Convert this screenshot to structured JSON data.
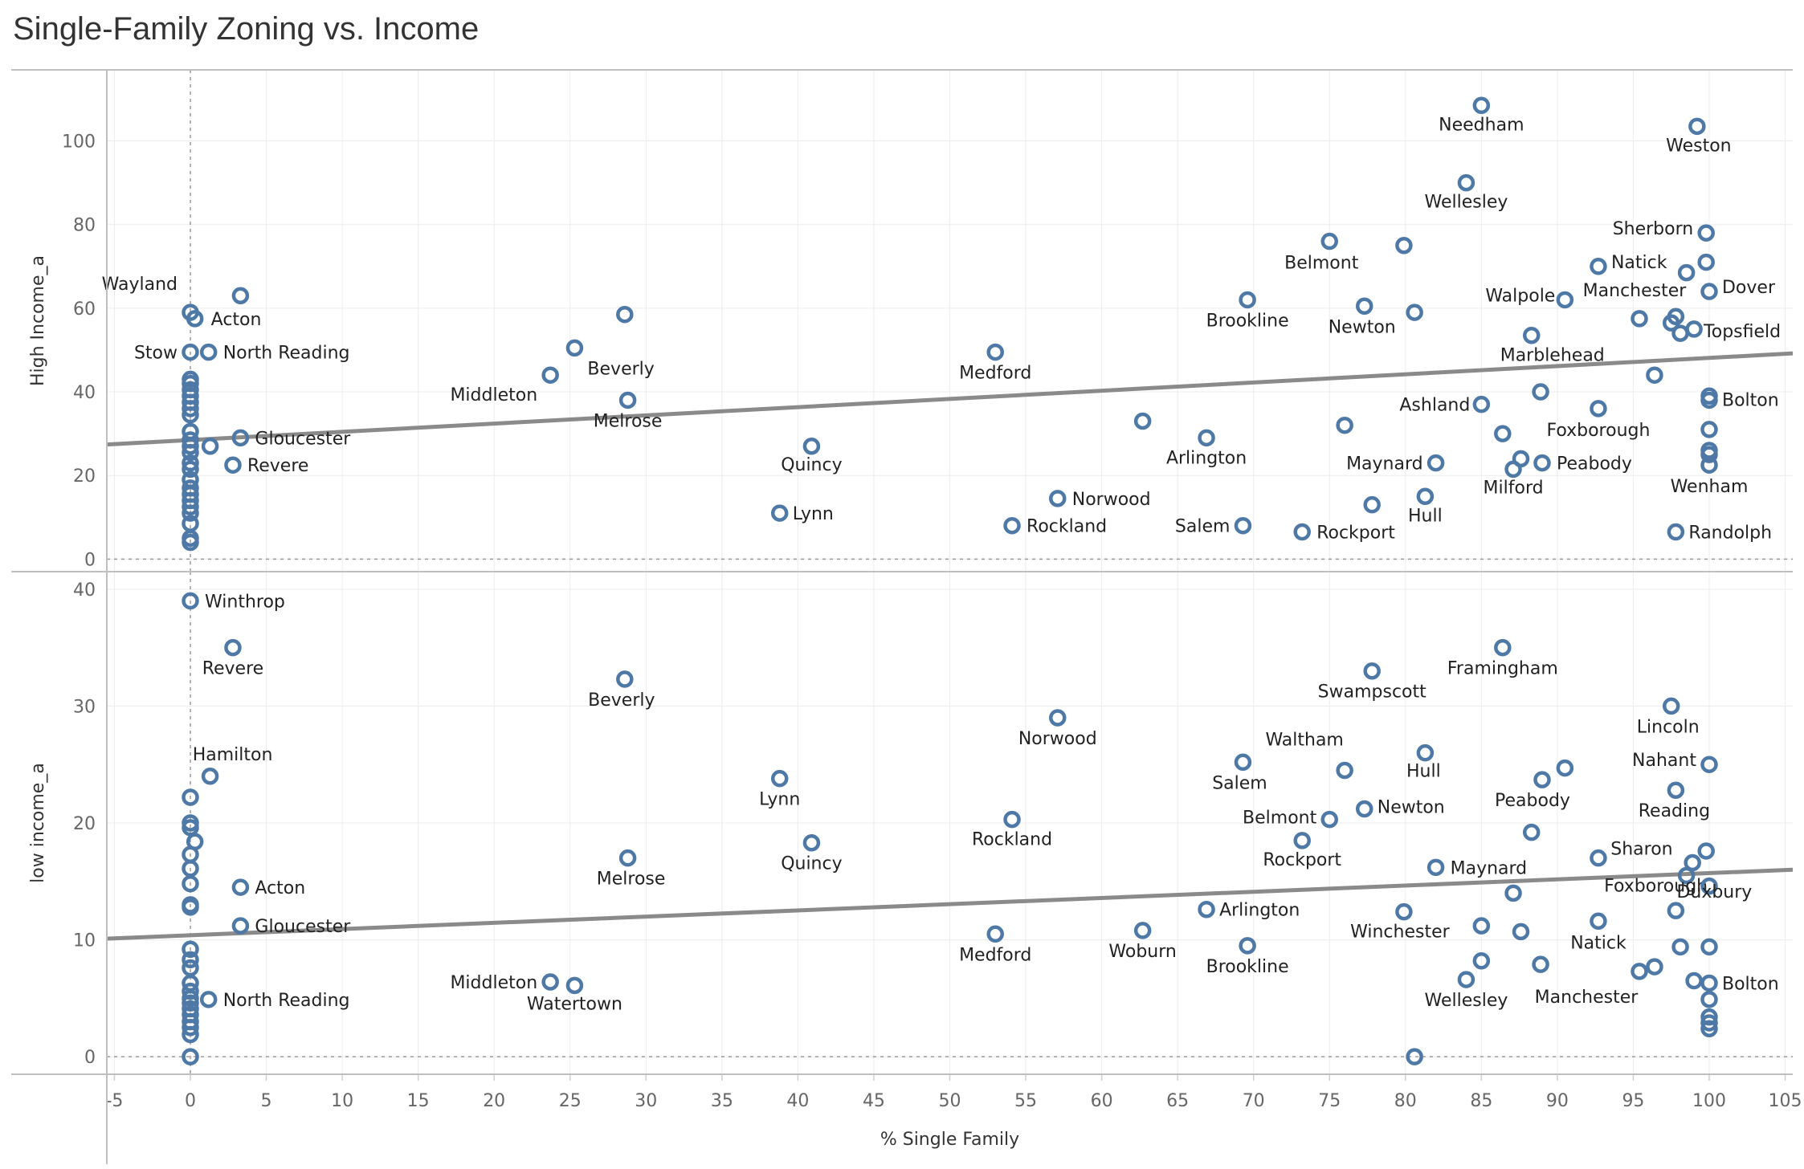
{
  "title": "Single-Family Zoning vs. Income",
  "chart_data": [
    {
      "id": "high",
      "type": "scatter",
      "ylabel": "High Income_a",
      "xlabel": "% Single Family",
      "xlim": [
        -5.5,
        105.5
      ],
      "ylim": [
        -3,
        117
      ],
      "yticks": [
        0,
        20,
        40,
        60,
        80,
        100
      ],
      "trend": [
        [
          -5.5,
          27.4
        ],
        [
          105.5,
          49.2
        ]
      ],
      "points": [
        {
          "x": 85.0,
          "y": 108.5,
          "label": "Needham"
        },
        {
          "x": 99.2,
          "y": 103.5,
          "label": "Weston"
        },
        {
          "x": 84.0,
          "y": 90.0,
          "label": "Wellesley"
        },
        {
          "x": 75.0,
          "y": 76.0,
          "label": "Belmont"
        },
        {
          "x": 79.9,
          "y": 75.0,
          "label": ""
        },
        {
          "x": 99.8,
          "y": 78.0,
          "label": "Sherborn"
        },
        {
          "x": 99.8,
          "y": 71.0,
          "label": ""
        },
        {
          "x": 92.7,
          "y": 70.0,
          "label": "Natick"
        },
        {
          "x": 98.5,
          "y": 68.5,
          "label": ""
        },
        {
          "x": 100.0,
          "y": 64.0,
          "label": "Dover"
        },
        {
          "x": 0.0,
          "y": 59.0,
          "label": "Wayland"
        },
        {
          "x": 3.3,
          "y": 63.0,
          "label": ""
        },
        {
          "x": 0.3,
          "y": 57.5,
          "label": "Acton"
        },
        {
          "x": 28.6,
          "y": 58.5,
          "label": ""
        },
        {
          "x": 25.3,
          "y": 50.5,
          "label": "Beverly"
        },
        {
          "x": 69.6,
          "y": 62.0,
          "label": "Brookline"
        },
        {
          "x": 77.3,
          "y": 60.5,
          "label": "Newton"
        },
        {
          "x": 80.6,
          "y": 59.0,
          "label": ""
        },
        {
          "x": 90.5,
          "y": 62.0,
          "label": "Walpole"
        },
        {
          "x": 95.4,
          "y": 57.5,
          "label": "Manchester"
        },
        {
          "x": 97.5,
          "y": 56.5,
          "label": ""
        },
        {
          "x": 97.8,
          "y": 58.0,
          "label": ""
        },
        {
          "x": 98.1,
          "y": 54.0,
          "label": ""
        },
        {
          "x": 99.0,
          "y": 55.0,
          "label": "Topsfield"
        },
        {
          "x": 88.3,
          "y": 53.5,
          "label": "Marblehead"
        },
        {
          "x": 0.0,
          "y": 49.5,
          "label": "Stow"
        },
        {
          "x": 1.2,
          "y": 49.5,
          "label": "North Reading"
        },
        {
          "x": 53.0,
          "y": 49.5,
          "label": "Medford"
        },
        {
          "x": 23.7,
          "y": 44.0,
          "label": "Middleton"
        },
        {
          "x": 28.8,
          "y": 38.0,
          "label": "Melrose"
        },
        {
          "x": 96.4,
          "y": 44.0,
          "label": ""
        },
        {
          "x": 88.9,
          "y": 40.0,
          "label": ""
        },
        {
          "x": 85.0,
          "y": 37.0,
          "label": "Ashland"
        },
        {
          "x": 92.7,
          "y": 36.0,
          "label": "Foxborough"
        },
        {
          "x": 100.0,
          "y": 39.0,
          "label": "Bolton"
        },
        {
          "x": 100.0,
          "y": 38.0,
          "label": ""
        },
        {
          "x": 62.7,
          "y": 33.0,
          "label": ""
        },
        {
          "x": 66.9,
          "y": 29.0,
          "label": "Arlington"
        },
        {
          "x": 76.0,
          "y": 32.0,
          "label": ""
        },
        {
          "x": 86.4,
          "y": 30.0,
          "label": ""
        },
        {
          "x": 100.0,
          "y": 31.0,
          "label": ""
        },
        {
          "x": 3.3,
          "y": 29.0,
          "label": "Gloucester"
        },
        {
          "x": 1.3,
          "y": 27.0,
          "label": ""
        },
        {
          "x": 2.8,
          "y": 22.5,
          "label": "Revere"
        },
        {
          "x": 40.9,
          "y": 27.0,
          "label": "Quincy"
        },
        {
          "x": 87.6,
          "y": 24.0,
          "label": ""
        },
        {
          "x": 87.1,
          "y": 21.5,
          "label": "Milford"
        },
        {
          "x": 89.0,
          "y": 23.0,
          "label": "Peabody"
        },
        {
          "x": 82.0,
          "y": 23.0,
          "label": "Maynard"
        },
        {
          "x": 100.0,
          "y": 26.0,
          "label": ""
        },
        {
          "x": 100.0,
          "y": 25.0,
          "label": ""
        },
        {
          "x": 100.0,
          "y": 22.5,
          "label": "Wenham"
        },
        {
          "x": 38.8,
          "y": 11.0,
          "label": "Lynn"
        },
        {
          "x": 57.1,
          "y": 14.5,
          "label": "Norwood"
        },
        {
          "x": 54.1,
          "y": 8.0,
          "label": "Rockland"
        },
        {
          "x": 69.3,
          "y": 8.0,
          "label": "Salem"
        },
        {
          "x": 73.2,
          "y": 6.5,
          "label": "Rockport"
        },
        {
          "x": 77.8,
          "y": 13.0,
          "label": ""
        },
        {
          "x": 81.3,
          "y": 15.0,
          "label": "Hull"
        },
        {
          "x": 97.8,
          "y": 6.5,
          "label": "Randolph"
        },
        {
          "x": 0.0,
          "y": 43.0,
          "label": ""
        },
        {
          "x": 0.0,
          "y": 42.0,
          "label": ""
        },
        {
          "x": 0.0,
          "y": 40.5,
          "label": ""
        },
        {
          "x": 0.0,
          "y": 39.0,
          "label": ""
        },
        {
          "x": 0.0,
          "y": 37.5,
          "label": ""
        },
        {
          "x": 0.0,
          "y": 36.0,
          "label": ""
        },
        {
          "x": 0.0,
          "y": 34.5,
          "label": ""
        },
        {
          "x": 0.0,
          "y": 30.5,
          "label": ""
        },
        {
          "x": 0.0,
          "y": 28.5,
          "label": ""
        },
        {
          "x": 0.0,
          "y": 27.0,
          "label": ""
        },
        {
          "x": 0.0,
          "y": 25.5,
          "label": ""
        },
        {
          "x": 0.0,
          "y": 23.0,
          "label": ""
        },
        {
          "x": 0.0,
          "y": 21.5,
          "label": ""
        },
        {
          "x": 0.0,
          "y": 19.0,
          "label": ""
        },
        {
          "x": 0.0,
          "y": 17.0,
          "label": ""
        },
        {
          "x": 0.0,
          "y": 15.5,
          "label": ""
        },
        {
          "x": 0.0,
          "y": 14.0,
          "label": ""
        },
        {
          "x": 0.0,
          "y": 12.5,
          "label": ""
        },
        {
          "x": 0.0,
          "y": 11.0,
          "label": ""
        },
        {
          "x": 0.0,
          "y": 8.5,
          "label": ""
        },
        {
          "x": 0.0,
          "y": 5.0,
          "label": ""
        },
        {
          "x": 0.0,
          "y": 4.0,
          "label": ""
        }
      ]
    },
    {
      "id": "low",
      "type": "scatter",
      "ylabel": "low income_a",
      "xlabel": "% Single Family",
      "xlim": [
        -5.5,
        105.5
      ],
      "ylim": [
        -1.5,
        41.5
      ],
      "yticks": [
        0,
        10,
        20,
        30,
        40
      ],
      "trend": [
        [
          -5.5,
          10.1
        ],
        [
          105.5,
          16.0
        ]
      ],
      "points": [
        {
          "x": 0.0,
          "y": 39.0,
          "label": "Winthrop"
        },
        {
          "x": 2.8,
          "y": 35.0,
          "label": "Revere"
        },
        {
          "x": 28.6,
          "y": 32.3,
          "label": "Beverly"
        },
        {
          "x": 77.8,
          "y": 33.0,
          "label": "Swampscott"
        },
        {
          "x": 86.4,
          "y": 35.0,
          "label": "Framingham"
        },
        {
          "x": 57.1,
          "y": 29.0,
          "label": "Norwood"
        },
        {
          "x": 97.5,
          "y": 30.0,
          "label": "Lincoln"
        },
        {
          "x": 1.3,
          "y": 24.0,
          "label": "Hamilton"
        },
        {
          "x": 38.8,
          "y": 23.8,
          "label": "Lynn"
        },
        {
          "x": 69.3,
          "y": 25.2,
          "label": "Salem"
        },
        {
          "x": 76.0,
          "y": 24.5,
          "label": "Waltham"
        },
        {
          "x": 81.3,
          "y": 26.0,
          "label": "Hull"
        },
        {
          "x": 89.0,
          "y": 23.7,
          "label": "Peabody"
        },
        {
          "x": 90.5,
          "y": 24.7,
          "label": ""
        },
        {
          "x": 100.0,
          "y": 25.0,
          "label": "Nahant"
        },
        {
          "x": 97.8,
          "y": 22.8,
          "label": "Reading"
        },
        {
          "x": 54.1,
          "y": 20.3,
          "label": "Rockland"
        },
        {
          "x": 40.9,
          "y": 18.3,
          "label": "Quincy"
        },
        {
          "x": 75.0,
          "y": 20.3,
          "label": "Belmont"
        },
        {
          "x": 77.3,
          "y": 21.2,
          "label": "Newton"
        },
        {
          "x": 73.2,
          "y": 18.5,
          "label": "Rockport"
        },
        {
          "x": 88.3,
          "y": 19.2,
          "label": ""
        },
        {
          "x": 28.8,
          "y": 17.0,
          "label": "Melrose"
        },
        {
          "x": 3.3,
          "y": 14.5,
          "label": "Acton"
        },
        {
          "x": 3.3,
          "y": 11.2,
          "label": "Gloucester"
        },
        {
          "x": 82.0,
          "y": 16.2,
          "label": "Maynard"
        },
        {
          "x": 92.7,
          "y": 17.0,
          "label": "Sharon"
        },
        {
          "x": 99.8,
          "y": 17.6,
          "label": ""
        },
        {
          "x": 98.9,
          "y": 16.6,
          "label": ""
        },
        {
          "x": 98.5,
          "y": 15.5,
          "label": "Foxborough"
        },
        {
          "x": 87.1,
          "y": 14.0,
          "label": ""
        },
        {
          "x": 100.0,
          "y": 14.6,
          "label": ""
        },
        {
          "x": 66.9,
          "y": 12.6,
          "label": "Arlington"
        },
        {
          "x": 79.9,
          "y": 12.4,
          "label": "Winchester"
        },
        {
          "x": 85.0,
          "y": 11.2,
          "label": ""
        },
        {
          "x": 87.6,
          "y": 10.7,
          "label": ""
        },
        {
          "x": 92.7,
          "y": 11.6,
          "label": "Natick"
        },
        {
          "x": 97.8,
          "y": 12.5,
          "label": "Duxbury"
        },
        {
          "x": 53.0,
          "y": 10.5,
          "label": "Medford"
        },
        {
          "x": 62.7,
          "y": 10.8,
          "label": "Woburn"
        },
        {
          "x": 69.6,
          "y": 9.5,
          "label": "Brookline"
        },
        {
          "x": 85.0,
          "y": 8.2,
          "label": ""
        },
        {
          "x": 88.9,
          "y": 7.9,
          "label": ""
        },
        {
          "x": 84.0,
          "y": 6.6,
          "label": "Wellesley"
        },
        {
          "x": 95.4,
          "y": 7.3,
          "label": "Manchester"
        },
        {
          "x": 96.4,
          "y": 7.7,
          "label": ""
        },
        {
          "x": 98.1,
          "y": 9.4,
          "label": ""
        },
        {
          "x": 100.0,
          "y": 9.4,
          "label": ""
        },
        {
          "x": 99.0,
          "y": 6.5,
          "label": ""
        },
        {
          "x": 100.0,
          "y": 6.3,
          "label": "Bolton"
        },
        {
          "x": 100.0,
          "y": 4.9,
          "label": ""
        },
        {
          "x": 100.0,
          "y": 3.4,
          "label": ""
        },
        {
          "x": 100.0,
          "y": 2.9,
          "label": ""
        },
        {
          "x": 100.0,
          "y": 2.4,
          "label": ""
        },
        {
          "x": 23.7,
          "y": 6.4,
          "label": "Middleton"
        },
        {
          "x": 25.3,
          "y": 6.1,
          "label": "Watertown"
        },
        {
          "x": 1.2,
          "y": 4.9,
          "label": "North Reading"
        },
        {
          "x": 80.6,
          "y": 0.0,
          "label": ""
        },
        {
          "x": 0.0,
          "y": 22.2,
          "label": ""
        },
        {
          "x": 0.0,
          "y": 20.0,
          "label": ""
        },
        {
          "x": 0.0,
          "y": 19.6,
          "label": ""
        },
        {
          "x": 0.3,
          "y": 18.4,
          "label": ""
        },
        {
          "x": 0.0,
          "y": 17.3,
          "label": ""
        },
        {
          "x": 0.0,
          "y": 16.1,
          "label": ""
        },
        {
          "x": 0.0,
          "y": 14.8,
          "label": ""
        },
        {
          "x": 0.0,
          "y": 13.0,
          "label": ""
        },
        {
          "x": 0.0,
          "y": 12.8,
          "label": ""
        },
        {
          "x": 0.0,
          "y": 9.2,
          "label": ""
        },
        {
          "x": 0.0,
          "y": 8.3,
          "label": ""
        },
        {
          "x": 0.0,
          "y": 7.6,
          "label": ""
        },
        {
          "x": 0.0,
          "y": 6.3,
          "label": ""
        },
        {
          "x": 0.0,
          "y": 5.6,
          "label": ""
        },
        {
          "x": 0.0,
          "y": 5.0,
          "label": ""
        },
        {
          "x": 0.0,
          "y": 4.6,
          "label": ""
        },
        {
          "x": 0.0,
          "y": 4.1,
          "label": ""
        },
        {
          "x": 0.0,
          "y": 3.6,
          "label": ""
        },
        {
          "x": 0.0,
          "y": 3.0,
          "label": ""
        },
        {
          "x": 0.0,
          "y": 2.5,
          "label": ""
        },
        {
          "x": 0.0,
          "y": 1.9,
          "label": ""
        },
        {
          "x": 0.0,
          "y": 0.0,
          "label": ""
        }
      ]
    }
  ],
  "x_axis": {
    "label": "% Single Family",
    "ticks": [
      -5,
      0,
      5,
      10,
      15,
      20,
      25,
      30,
      35,
      40,
      45,
      50,
      55,
      60,
      65,
      70,
      75,
      80,
      85,
      90,
      95,
      100,
      105
    ]
  },
  "style": {
    "point_color": "#4e79a7",
    "trend_color": "#8a8a8a",
    "grid_color": "#ececec"
  }
}
